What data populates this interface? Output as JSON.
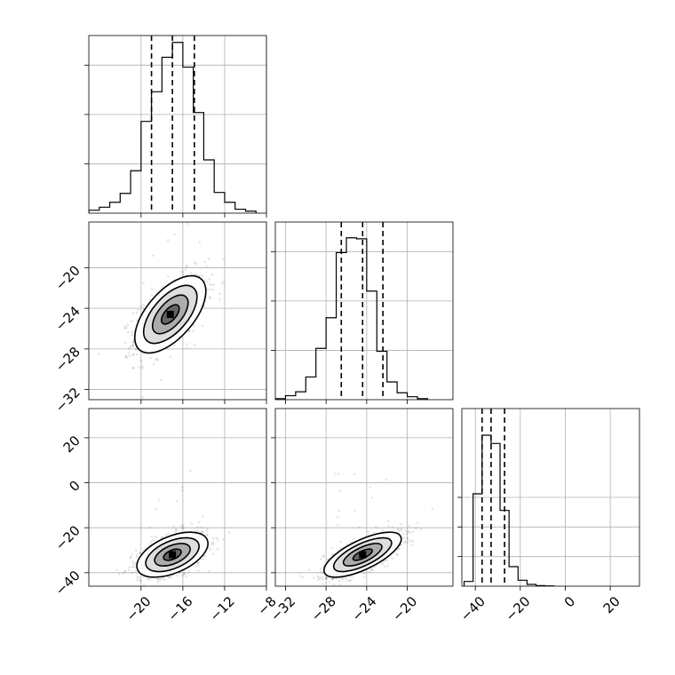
{
  "chart_data": {
    "type": "corner",
    "grid": true,
    "panels": [
      {
        "id": "hist-x",
        "type": "bar",
        "variable": "x",
        "xlim": [
          -25,
          -8
        ],
        "bins": [
          -25,
          -24,
          -23,
          -22,
          -21,
          -20,
          -19,
          -18,
          -17,
          -16,
          -15,
          -14,
          -13,
          -12,
          -11,
          -10,
          -9
        ],
        "counts": [
          30,
          60,
          110,
          200,
          430,
          930,
          1230,
          1580,
          1730,
          1480,
          1020,
          540,
          210,
          110,
          40,
          20
        ],
        "ymax": 1800,
        "quantiles": [
          -19.0,
          -17.0,
          -14.9
        ]
      },
      {
        "id": "hist-y",
        "type": "bar",
        "variable": "y",
        "xlim": [
          -33,
          -15.5
        ],
        "bins": [
          -33,
          -32,
          -31,
          -30,
          -29,
          -28,
          -27,
          -26,
          -25,
          -24,
          -23,
          -22,
          -21,
          -20,
          -19,
          -18
        ],
        "counts": [
          10,
          40,
          80,
          230,
          520,
          830,
          1490,
          1640,
          1630,
          1100,
          490,
          180,
          70,
          30,
          10
        ],
        "ymax": 1800,
        "quantiles": [
          -26.5,
          -24.4,
          -22.4
        ]
      },
      {
        "id": "hist-z",
        "type": "bar",
        "variable": "z",
        "xlim": [
          -46,
          33
        ],
        "bins": [
          -45,
          -41,
          -37,
          -33,
          -29,
          -25,
          -21,
          -17,
          -13,
          -9,
          -5
        ],
        "counts": [
          80,
          1560,
          2550,
          2410,
          1280,
          330,
          100,
          30,
          10,
          5
        ],
        "ymax": 3000,
        "quantiles": [
          -37,
          -33,
          -27
        ]
      },
      {
        "id": "xy",
        "type": "scatter",
        "x_variable": "x",
        "y_variable": "y",
        "xlim": [
          -25,
          -8
        ],
        "ylim": [
          -33,
          -15.5
        ],
        "mean": [
          -17.2,
          -24.6
        ],
        "sd": [
          1.7,
          1.9
        ],
        "corr": 0.6,
        "contour_sigmas": [
          0.5,
          1.0,
          1.5,
          2.0
        ]
      },
      {
        "id": "xz",
        "type": "scatter",
        "x_variable": "x",
        "y_variable": "z",
        "xlim": [
          -25,
          -8
        ],
        "ylim": [
          -46,
          33
        ],
        "mean": [
          -17.0,
          -32
        ],
        "sd": [
          1.7,
          5
        ],
        "corr": 0.5,
        "contour_sigmas": [
          0.5,
          1.0,
          1.5,
          2.0
        ]
      },
      {
        "id": "yz",
        "type": "scatter",
        "x_variable": "y",
        "y_variable": "z",
        "xlim": [
          -33,
          -15.5
        ],
        "ylim": [
          -46,
          33
        ],
        "mean": [
          -24.4,
          -32
        ],
        "sd": [
          1.9,
          5
        ],
        "corr": 0.7,
        "contour_sigmas": [
          0.5,
          1.0,
          1.5,
          2.0
        ]
      }
    ],
    "x_tick_labels": {
      "x": [
        {
          "value": -20,
          "label": "−20"
        },
        {
          "value": -16,
          "label": "−16"
        },
        {
          "value": -12,
          "label": "−12"
        },
        {
          "value": -8,
          "label": "−8"
        }
      ],
      "y": [
        {
          "value": -32,
          "label": "−32"
        },
        {
          "value": -28,
          "label": "−28"
        },
        {
          "value": -24,
          "label": "−24"
        },
        {
          "value": -20,
          "label": "−20"
        }
      ],
      "z": [
        {
          "value": -40,
          "label": "−40"
        },
        {
          "value": -20,
          "label": "−20"
        },
        {
          "value": 0,
          "label": "0"
        },
        {
          "value": 20,
          "label": "20"
        }
      ]
    },
    "y_tick_labels": {
      "y": [
        {
          "value": -32,
          "label": "−32"
        },
        {
          "value": -28,
          "label": "−28"
        },
        {
          "value": -24,
          "label": "−24"
        },
        {
          "value": -20,
          "label": "−20"
        }
      ],
      "z": [
        {
          "value": -40,
          "label": "−40"
        },
        {
          "value": -20,
          "label": "−20"
        },
        {
          "value": 0,
          "label": "0"
        },
        {
          "value": 20,
          "label": "20"
        }
      ]
    },
    "hist_y_ticks": [
      500,
      1000,
      1500
    ]
  }
}
